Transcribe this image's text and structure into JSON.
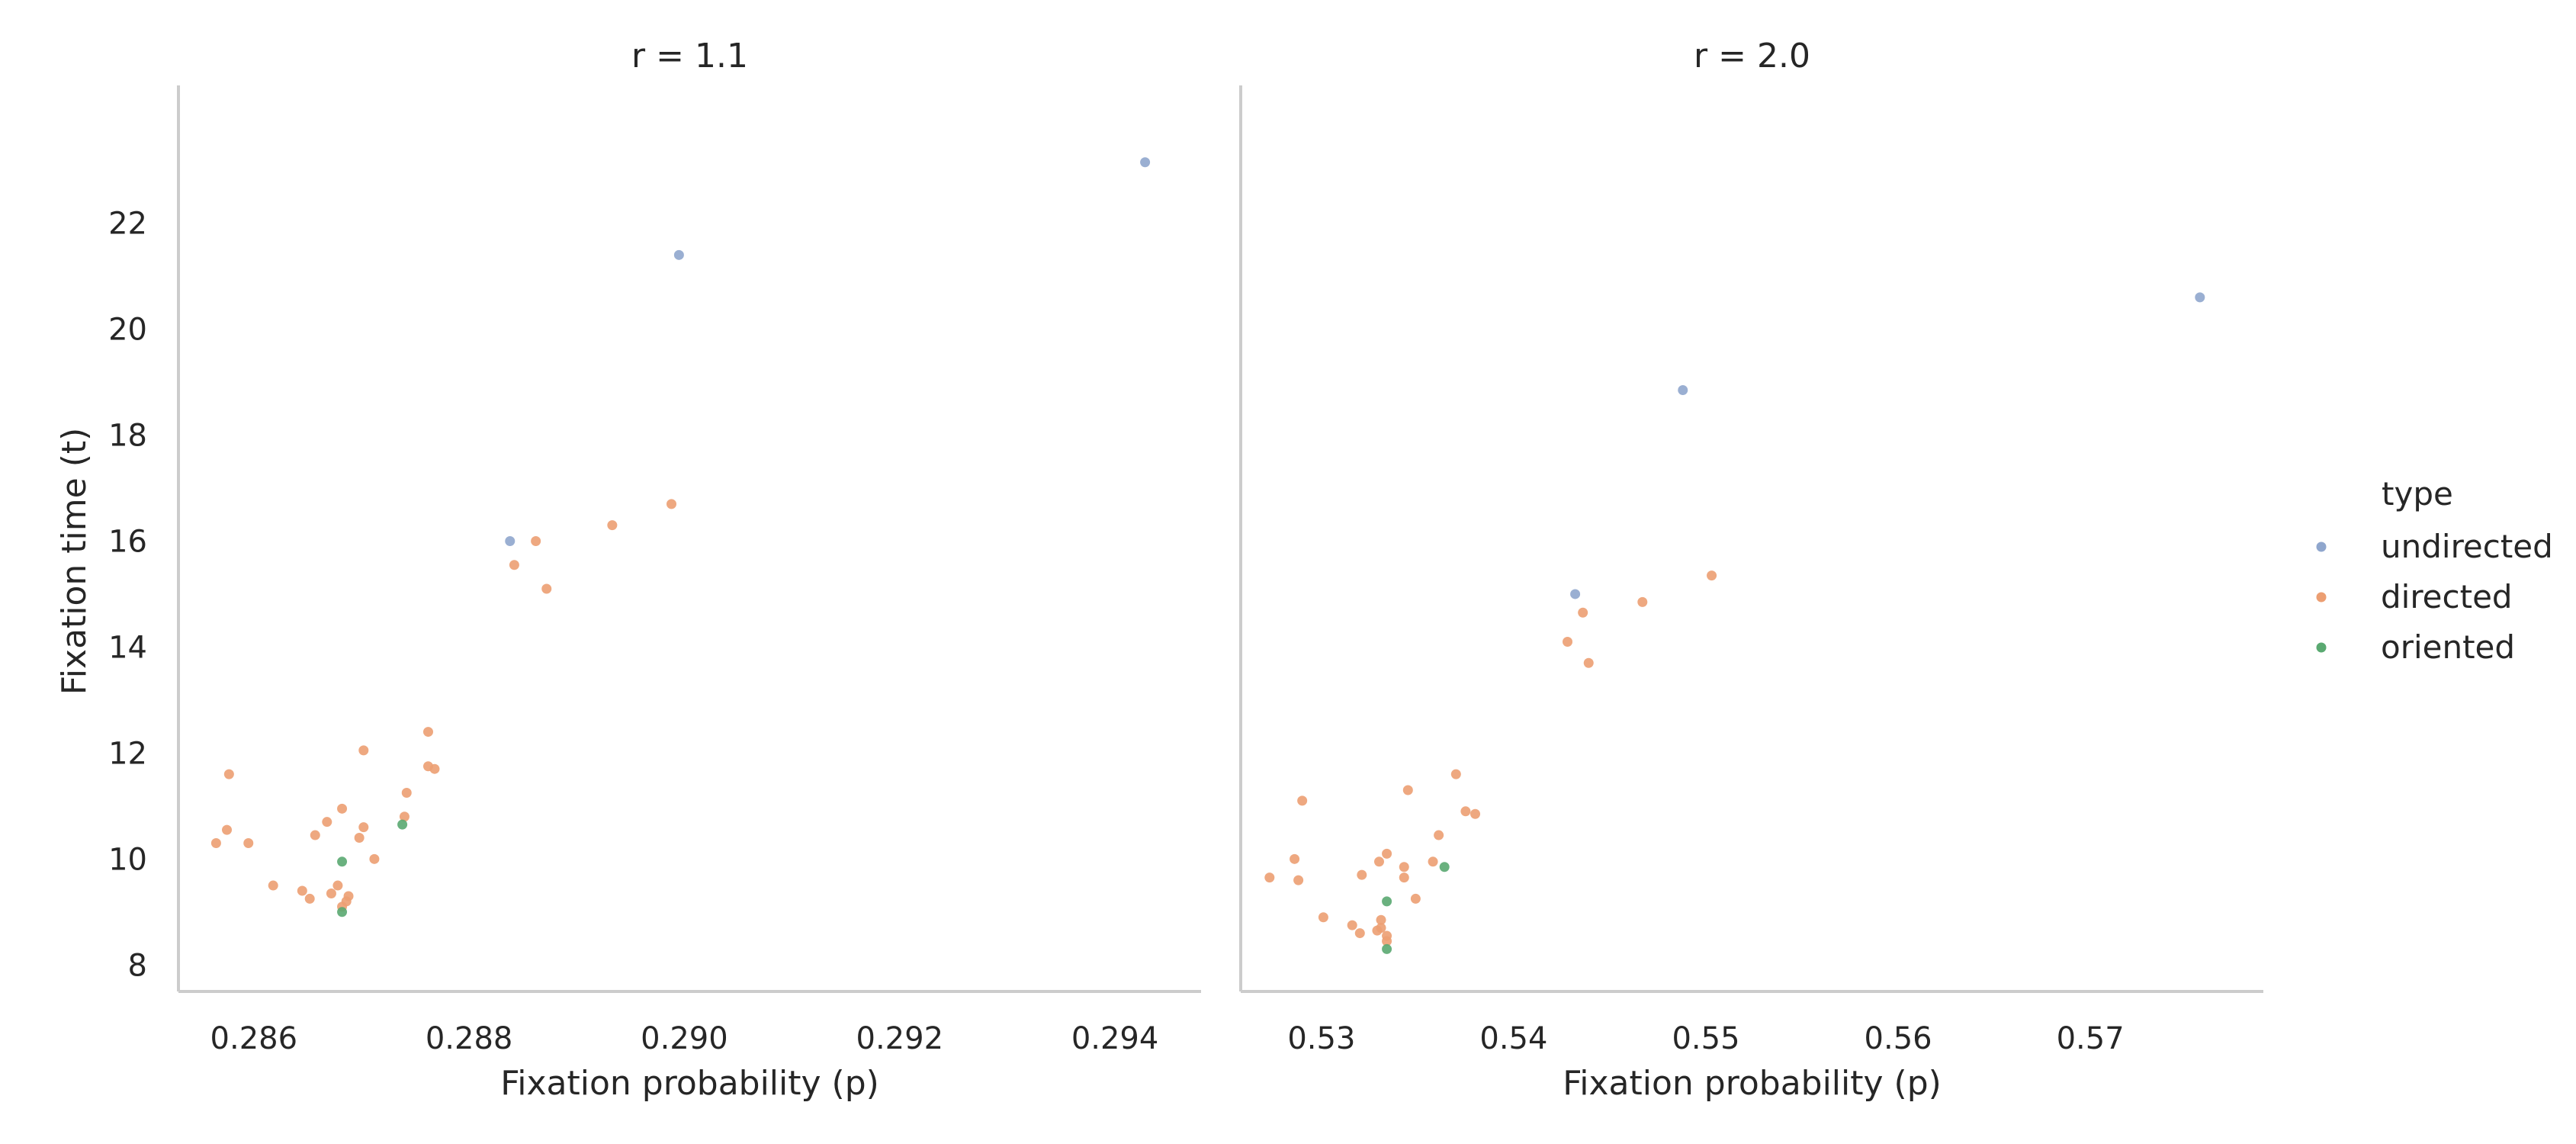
{
  "chart_data": {
    "type": "scatter",
    "ylabel": "Fixation time (t)",
    "ylim": [
      7.5,
      24.6
    ],
    "yticks": [
      8,
      10,
      12,
      14,
      16,
      18,
      20,
      22
    ],
    "grid": false,
    "legend": {
      "title": "type",
      "position": "right",
      "entries": [
        {
          "name": "undirected",
          "color": "#8fa6cd"
        },
        {
          "name": "directed",
          "color": "#ec9e72"
        },
        {
          "name": "oriented",
          "color": "#5aa971"
        }
      ]
    },
    "panels": [
      {
        "title": "r = 1.1",
        "xlabel": "Fixation probability (p)",
        "xlim": [
          0.2853,
          0.2948
        ],
        "xticks": [
          0.286,
          0.288,
          0.29,
          0.292,
          0.294
        ],
        "xtick_labels": [
          "0.286",
          "0.288",
          "0.290",
          "0.292",
          "0.294"
        ],
        "series": [
          {
            "name": "undirected",
            "points": [
              [
                0.29428,
                23.15
              ],
              [
                0.28995,
                21.4
              ],
              [
                0.28838,
                16.0
              ]
            ]
          },
          {
            "name": "directed",
            "points": [
              [
                0.28988,
                16.7
              ],
              [
                0.28933,
                16.3
              ],
              [
                0.28862,
                16.0
              ],
              [
                0.28842,
                15.55
              ],
              [
                0.28872,
                15.1
              ],
              [
                0.28762,
                12.4
              ],
              [
                0.28702,
                12.05
              ],
              [
                0.28762,
                11.75
              ],
              [
                0.28768,
                11.7
              ],
              [
                0.28577,
                11.6
              ],
              [
                0.28742,
                11.25
              ],
              [
                0.28682,
                10.95
              ],
              [
                0.2874,
                10.8
              ],
              [
                0.28668,
                10.7
              ],
              [
                0.28702,
                10.6
              ],
              [
                0.28575,
                10.55
              ],
              [
                0.28657,
                10.45
              ],
              [
                0.28698,
                10.4
              ],
              [
                0.28565,
                10.3
              ],
              [
                0.28595,
                10.3
              ],
              [
                0.28712,
                10.0
              ],
              [
                0.28618,
                9.5
              ],
              [
                0.28678,
                9.5
              ],
              [
                0.28645,
                9.4
              ],
              [
                0.28672,
                9.35
              ],
              [
                0.28688,
                9.3
              ],
              [
                0.28652,
                9.25
              ],
              [
                0.28686,
                9.2
              ],
              [
                0.28682,
                9.1
              ]
            ]
          },
          {
            "name": "oriented",
            "points": [
              [
                0.28738,
                10.65
              ],
              [
                0.28682,
                9.95
              ],
              [
                0.28682,
                9.0
              ]
            ]
          }
        ]
      },
      {
        "title": "r = 2.0",
        "xlabel": "Fixation probability (p)",
        "xlim": [
          0.5258,
          0.579
        ],
        "xticks": [
          0.53,
          0.54,
          0.55,
          0.56,
          0.57
        ],
        "xtick_labels": [
          "0.53",
          "0.54",
          "0.55",
          "0.56",
          "0.57"
        ],
        "series": [
          {
            "name": "undirected",
            "points": [
              [
                0.5757,
                20.6
              ],
              [
                0.5488,
                18.85
              ],
              [
                0.5432,
                15.0
              ]
            ]
          },
          {
            "name": "directed",
            "points": [
              [
                0.5503,
                15.35
              ],
              [
                0.5467,
                14.85
              ],
              [
                0.5436,
                14.65
              ],
              [
                0.5428,
                14.1
              ],
              [
                0.5439,
                13.7
              ],
              [
                0.537,
                11.6
              ],
              [
                0.5345,
                11.3
              ],
              [
                0.529,
                11.1
              ],
              [
                0.5375,
                10.9
              ],
              [
                0.538,
                10.85
              ],
              [
                0.5361,
                10.45
              ],
              [
                0.5334,
                10.1
              ],
              [
                0.5286,
                10.0
              ],
              [
                0.533,
                9.95
              ],
              [
                0.5358,
                9.95
              ],
              [
                0.5343,
                9.85
              ],
              [
                0.5321,
                9.7
              ],
              [
                0.5343,
                9.65
              ],
              [
                0.5273,
                9.65
              ],
              [
                0.5288,
                9.6
              ],
              [
                0.5349,
                9.25
              ],
              [
                0.5301,
                8.9
              ],
              [
                0.5331,
                8.85
              ],
              [
                0.5316,
                8.75
              ],
              [
                0.5331,
                8.7
              ],
              [
                0.5329,
                8.65
              ],
              [
                0.532,
                8.6
              ],
              [
                0.5334,
                8.55
              ],
              [
                0.5334,
                8.45
              ]
            ]
          },
          {
            "name": "oriented",
            "points": [
              [
                0.5364,
                9.85
              ],
              [
                0.5334,
                9.2
              ],
              [
                0.5334,
                8.3
              ]
            ]
          }
        ]
      }
    ]
  }
}
